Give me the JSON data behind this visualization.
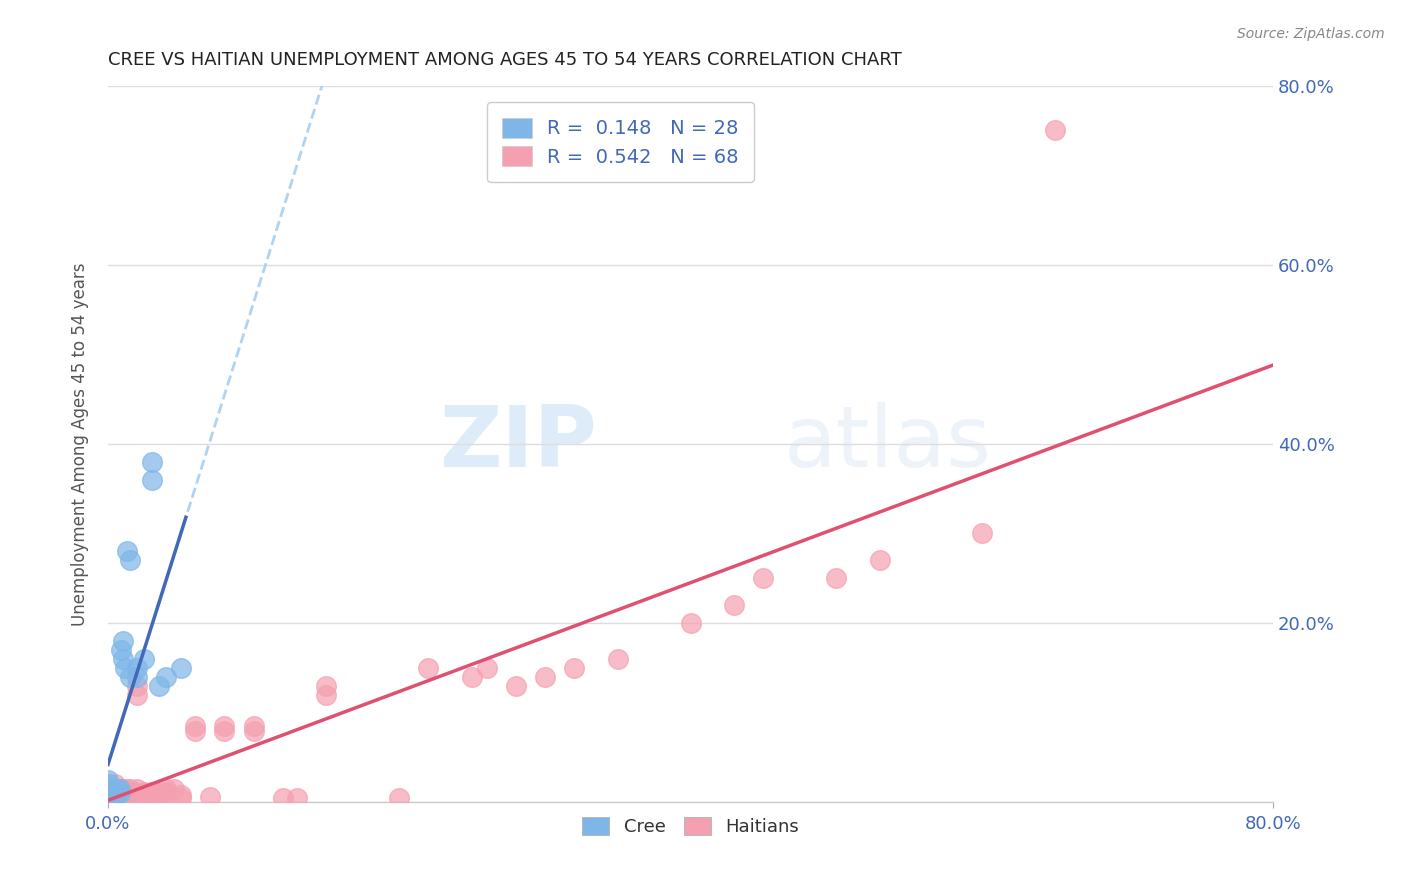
{
  "title": "CREE VS HAITIAN UNEMPLOYMENT AMONG AGES 45 TO 54 YEARS CORRELATION CHART",
  "source": "Source: ZipAtlas.com",
  "ylabel": "Unemployment Among Ages 45 to 54 years",
  "xlim": [
    0.0,
    0.8
  ],
  "ylim": [
    0.0,
    0.8
  ],
  "cree_color": "#7eb6e8",
  "haitian_color": "#f4a0b0",
  "cree_line_color": "#4169b8",
  "haitian_line_color": "#e05070",
  "cree_dashed_color": "#a8cff0",
  "legend_cree_R": "0.148",
  "legend_cree_N": "28",
  "legend_haitian_R": "0.542",
  "legend_haitian_N": "68",
  "legend_text_color": "#4169b8",
  "watermark_zip": "ZIP",
  "watermark_atlas": "atlas",
  "background_color": "#ffffff",
  "grid_color": "#dddddd",
  "cree_x": [
    0.0,
    0.0,
    0.0,
    0.0,
    0.0,
    0.002,
    0.003,
    0.004,
    0.005,
    0.005,
    0.007,
    0.008,
    0.008,
    0.009,
    0.01,
    0.01,
    0.012,
    0.013,
    0.015,
    0.015,
    0.02,
    0.02,
    0.025,
    0.03,
    0.03,
    0.035,
    0.04,
    0.05
  ],
  "cree_y": [
    0.005,
    0.01,
    0.015,
    0.02,
    0.025,
    0.005,
    0.01,
    0.015,
    0.005,
    0.01,
    0.015,
    0.01,
    0.015,
    0.17,
    0.16,
    0.18,
    0.15,
    0.28,
    0.14,
    0.27,
    0.14,
    0.15,
    0.16,
    0.38,
    0.36,
    0.13,
    0.14,
    0.15
  ],
  "haitian_x": [
    0.0,
    0.0,
    0.0,
    0.0,
    0.0,
    0.0,
    0.0,
    0.003,
    0.004,
    0.005,
    0.005,
    0.005,
    0.005,
    0.005,
    0.007,
    0.008,
    0.008,
    0.01,
    0.01,
    0.01,
    0.01,
    0.012,
    0.013,
    0.015,
    0.015,
    0.015,
    0.018,
    0.02,
    0.02,
    0.02,
    0.025,
    0.025,
    0.03,
    0.03,
    0.03,
    0.035,
    0.04,
    0.04,
    0.04,
    0.045,
    0.05,
    0.05,
    0.06,
    0.06,
    0.07,
    0.08,
    0.08,
    0.1,
    0.1,
    0.12,
    0.13,
    0.15,
    0.15,
    0.2,
    0.22,
    0.25,
    0.26,
    0.28,
    0.3,
    0.32,
    0.35,
    0.4,
    0.43,
    0.45,
    0.5,
    0.53,
    0.6,
    0.65
  ],
  "haitian_y": [
    0.005,
    0.008,
    0.01,
    0.012,
    0.015,
    0.018,
    0.02,
    0.005,
    0.01,
    0.005,
    0.008,
    0.01,
    0.015,
    0.02,
    0.005,
    0.01,
    0.015,
    0.005,
    0.008,
    0.01,
    0.015,
    0.01,
    0.015,
    0.01,
    0.012,
    0.015,
    0.01,
    0.12,
    0.13,
    0.015,
    0.01,
    0.012,
    0.005,
    0.01,
    0.012,
    0.01,
    0.01,
    0.012,
    0.015,
    0.015,
    0.005,
    0.008,
    0.08,
    0.085,
    0.006,
    0.08,
    0.085,
    0.08,
    0.085,
    0.005,
    0.005,
    0.12,
    0.13,
    0.005,
    0.15,
    0.14,
    0.15,
    0.13,
    0.14,
    0.15,
    0.16,
    0.2,
    0.22,
    0.25,
    0.25,
    0.27,
    0.3,
    0.75
  ]
}
